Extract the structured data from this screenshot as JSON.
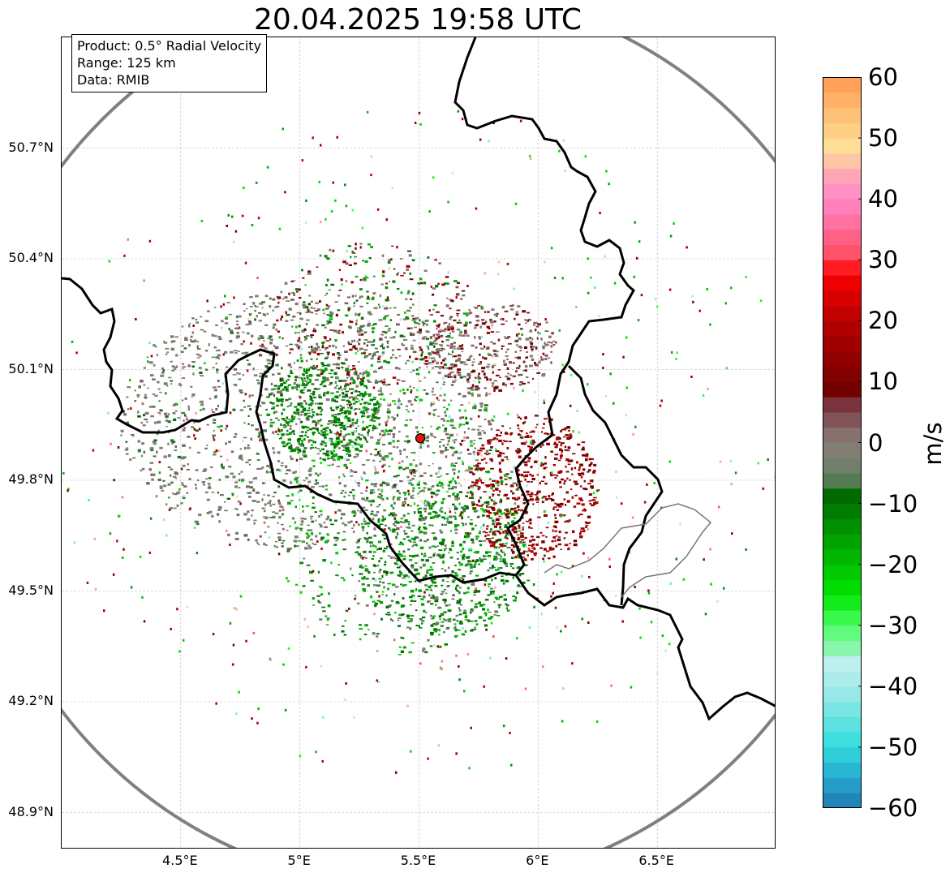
{
  "title": "20.04.2025 19:58 UTC",
  "info": {
    "product": "Product: 0.5° Radial Velocity",
    "range": "Range: 125 km",
    "source": "Data: RMIB"
  },
  "map": {
    "lon_range": [
      4.0,
      7.0
    ],
    "lat_range": [
      48.8,
      51.0
    ],
    "lon_ticks": [
      {
        "value": 4.5,
        "label": "4.5°E"
      },
      {
        "value": 5.0,
        "label": "5°E"
      },
      {
        "value": 5.5,
        "label": "5.5°E"
      },
      {
        "value": 6.0,
        "label": "6°E"
      },
      {
        "value": 6.5,
        "label": "6.5°E"
      }
    ],
    "lat_ticks": [
      {
        "value": 50.7,
        "label": "50.7°N"
      },
      {
        "value": 50.4,
        "label": "50.4°N"
      },
      {
        "value": 50.1,
        "label": "50.1°N"
      },
      {
        "value": 49.8,
        "label": "49.8°N"
      },
      {
        "value": 49.5,
        "label": "49.5°N"
      },
      {
        "value": 49.2,
        "label": "49.2°N"
      },
      {
        "value": 48.9,
        "label": "48.9°N"
      }
    ],
    "radar_site": {
      "lon": 5.505,
      "lat": 49.914
    },
    "grid": true
  },
  "colorbar": {
    "unit": "m/s",
    "min": -60,
    "max": 60,
    "ticks": [
      {
        "value": 60,
        "label": "60"
      },
      {
        "value": 50,
        "label": "50"
      },
      {
        "value": 40,
        "label": "40"
      },
      {
        "value": 30,
        "label": "30"
      },
      {
        "value": 20,
        "label": "20"
      },
      {
        "value": 10,
        "label": "10"
      },
      {
        "value": 0,
        "label": "0"
      },
      {
        "value": -10,
        "label": "−10"
      },
      {
        "value": -20,
        "label": "−20"
      },
      {
        "value": -30,
        "label": "−30"
      },
      {
        "value": -40,
        "label": "−40"
      },
      {
        "value": -50,
        "label": "−50"
      },
      {
        "value": -60,
        "label": "−60"
      }
    ],
    "stops": [
      {
        "v": -60,
        "c": "#1f77b4"
      },
      {
        "v": -55,
        "c": "#27a9cf"
      },
      {
        "v": -50,
        "c": "#30dcdc"
      },
      {
        "v": -40,
        "c": "#a7eaea"
      },
      {
        "v": -35,
        "c": "#c4f0f0"
      },
      {
        "v": -34,
        "c": "#8ef5b2"
      },
      {
        "v": -30,
        "c": "#4dff66"
      },
      {
        "v": -25,
        "c": "#00e600"
      },
      {
        "v": -15,
        "c": "#009900"
      },
      {
        "v": -8,
        "c": "#006400"
      },
      {
        "v": -6,
        "c": "#5f7f5f"
      },
      {
        "v": 0,
        "c": "#8a7f7a"
      },
      {
        "v": 6,
        "c": "#7a3a45"
      },
      {
        "v": 8,
        "c": "#6e0000"
      },
      {
        "v": 20,
        "c": "#b80000"
      },
      {
        "v": 28,
        "c": "#ff0000"
      },
      {
        "v": 30,
        "c": "#ff4a5e"
      },
      {
        "v": 40,
        "c": "#ff88c8"
      },
      {
        "v": 45,
        "c": "#ffb0b0"
      },
      {
        "v": 48,
        "c": "#ffe39a"
      },
      {
        "v": 60,
        "c": "#ff9a50"
      }
    ]
  }
}
